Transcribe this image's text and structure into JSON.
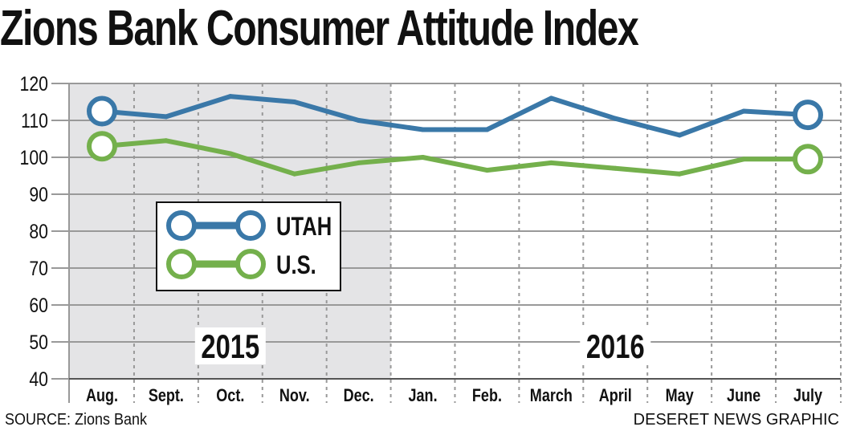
{
  "title": "Zions Bank Consumer Attitude Index",
  "source": "SOURCE: Zions Bank",
  "credit": "DESERET NEWS GRAPHIC",
  "colors": {
    "utah": "#3a78a8",
    "us": "#74b04c",
    "shade": "#e4e4e6",
    "grid": "#999999"
  },
  "chart_data": {
    "type": "line",
    "categories": [
      "Aug.",
      "Sept.",
      "Oct.",
      "Nov.",
      "Dec.",
      "Jan.",
      "Feb.",
      "March",
      "April",
      "May",
      "June",
      "July"
    ],
    "ylim": [
      40,
      120
    ],
    "yticks": [
      40,
      50,
      60,
      70,
      80,
      90,
      100,
      110,
      120
    ],
    "grid": true,
    "shaded_range": [
      "Aug.",
      "Dec."
    ],
    "year_labels": [
      {
        "text": "2015",
        "at": "Oct."
      },
      {
        "text": "2016",
        "at": "April"
      }
    ],
    "legend_position": "center-left",
    "series": [
      {
        "name": "UTAH",
        "color": "#3a78a8",
        "values": [
          112.5,
          111,
          116.5,
          115,
          110,
          107.5,
          107.5,
          116,
          110.5,
          106,
          112.5,
          111.5
        ]
      },
      {
        "name": "U.S.",
        "color": "#74b04c",
        "values": [
          103,
          104.5,
          101,
          95.5,
          98.5,
          100,
          96.5,
          98.5,
          97,
          95.5,
          99.5,
          99.5
        ]
      }
    ]
  }
}
